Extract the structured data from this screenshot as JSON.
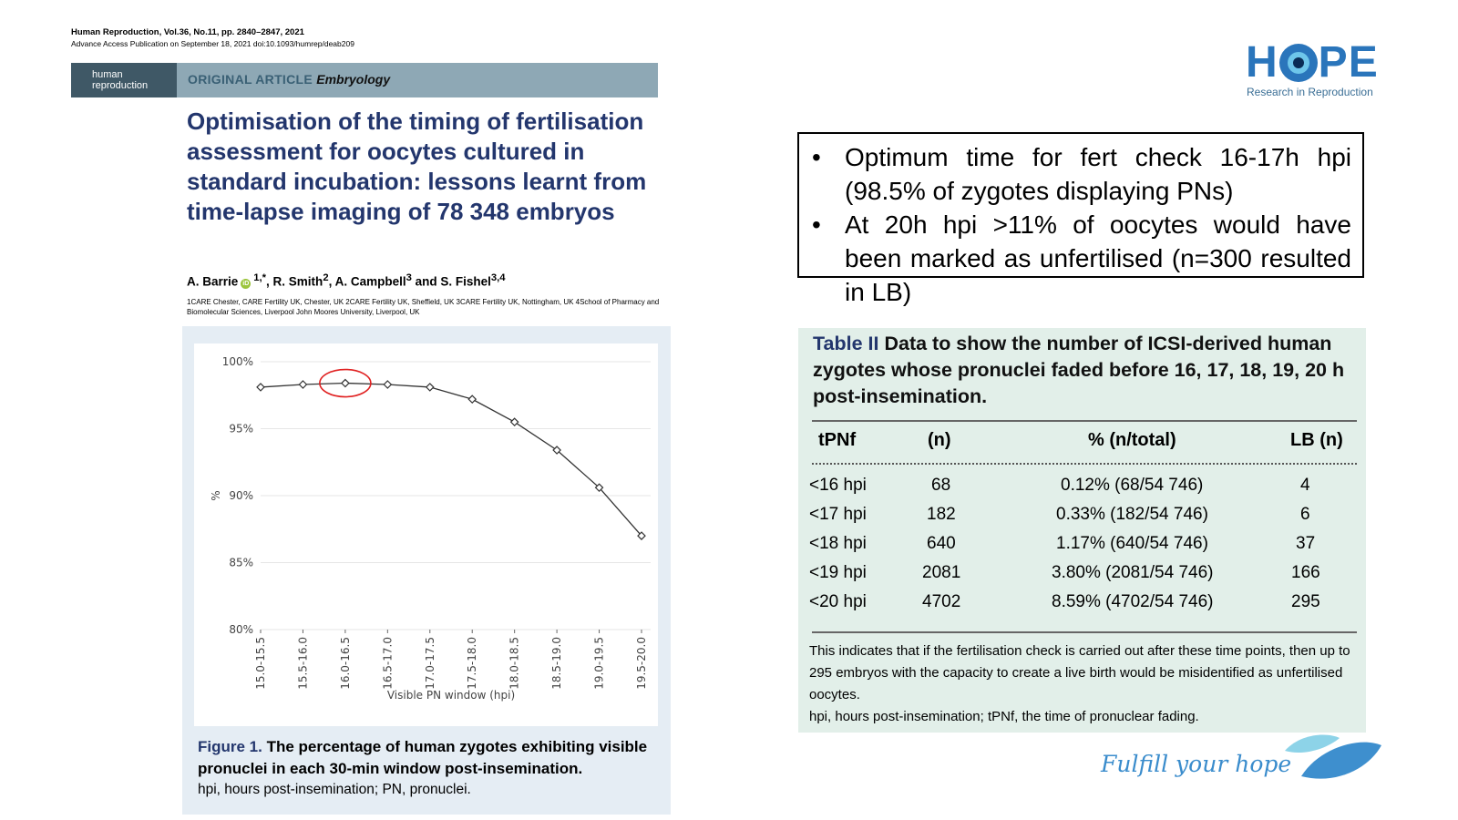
{
  "journal": {
    "citation": "Human Reproduction, Vol.36, No.11, pp. 2840–2847, 2021",
    "advance_access": "Advance Access Publication on September 18, 2021   doi:10.1093/humrep/deab209",
    "logo_line1": "human",
    "logo_line2": "reproduction",
    "article_type": "ORIGINAL ARTICLE",
    "article_subject": "Embryology"
  },
  "paper": {
    "title": "Optimisation of the timing of fertilisation assessment for oocytes cultured in standard incubation: lessons learnt from time-lapse imaging of 78 348 embryos",
    "authors": {
      "a1": "A. Barrie",
      "a1_sup": "1,*",
      "a2": ", R. Smith",
      "a2_sup": "2",
      "a3": ", A. Campbell",
      "a3_sup": "3",
      "a4": " and S. Fishel",
      "a4_sup": "3,4",
      "orcid_glyph": "iD"
    },
    "affiliations": "1CARE Chester, CARE Fertility UK, Chester, UK 2CARE Fertility UK, Sheffield, UK 3CARE Fertility UK, Nottingham, UK 4School of Pharmacy and Biomolecular Sciences, Liverpool John Moores University, Liverpool, UK"
  },
  "chart_data": {
    "type": "line",
    "xlabel": "Visible PN window (hpi)",
    "ylabel": "%",
    "categories": [
      "15.0-15.5",
      "15.5-16.0",
      "16.0-16.5",
      "16.5-17.0",
      "17.0-17.5",
      "17.5-18.0",
      "18.0-18.5",
      "18.5-19.0",
      "19.0-19.5",
      "19.5-20.0"
    ],
    "values": [
      98.1,
      98.3,
      98.4,
      98.3,
      98.1,
      97.2,
      95.5,
      93.4,
      90.6,
      87.0
    ],
    "ylim": [
      80,
      100
    ],
    "yticks": [
      100,
      95,
      90,
      85,
      80
    ],
    "ytick_labels": [
      "100%",
      "95%",
      "90%",
      "85%",
      "80%"
    ],
    "grid": "horizontal",
    "highlight_index": 2,
    "colors": {
      "line": "#333333",
      "highlight": "#e02020",
      "grid": "#e6e6e6"
    }
  },
  "figure": {
    "label": "Figure 1.",
    "caption": "The percentage of human zygotes exhibiting visible pronuclei in each 30-min window post-insemination.",
    "note": "hpi, hours post-insemination; PN, pronuclei."
  },
  "hope": {
    "letters_left": "H",
    "letters_right": "PE",
    "tagline": "Research in Reproduction",
    "slogan": "Fulfill your hope",
    "colors": {
      "brand": "#2a75bb",
      "light": "#6ec6ea"
    }
  },
  "bullets": [
    "Optimum time for fert check 16-17h hpi (98.5% of zygotes displaying PNs)",
    "At 20h hpi >11% of oocytes would have been marked as unfertilised (n=300 resulted in LB)"
  ],
  "table": {
    "label": "Table II",
    "title": "Data to show the number of ICSI-derived human zygotes whose pronuclei faded before 16, 17, 18, 19, 20 h post-insemination.",
    "headers": [
      "tPNf",
      "(n)",
      "% (n/total)",
      "LB (n)"
    ],
    "rows": [
      [
        "<16 hpi",
        "68",
        "0.12% (68/54 746)",
        "4"
      ],
      [
        "<17 hpi",
        "182",
        "0.33% (182/54 746)",
        "6"
      ],
      [
        "<18 hpi",
        "640",
        "1.17% (640/54 746)",
        "37"
      ],
      [
        "<19 hpi",
        "2081",
        "3.80% (2081/54 746)",
        "166"
      ],
      [
        "<20 hpi",
        "4702",
        "8.59% (4702/54 746)",
        "295"
      ]
    ],
    "note_1": "This indicates that if the fertilisation check is carried out after these time points, then up to 295 embryos with the capacity to create a live birth would be misidentified as unfertilised oocytes.",
    "note_2": "hpi, hours post-insemination; tPNf, the time of pronuclear fading."
  }
}
